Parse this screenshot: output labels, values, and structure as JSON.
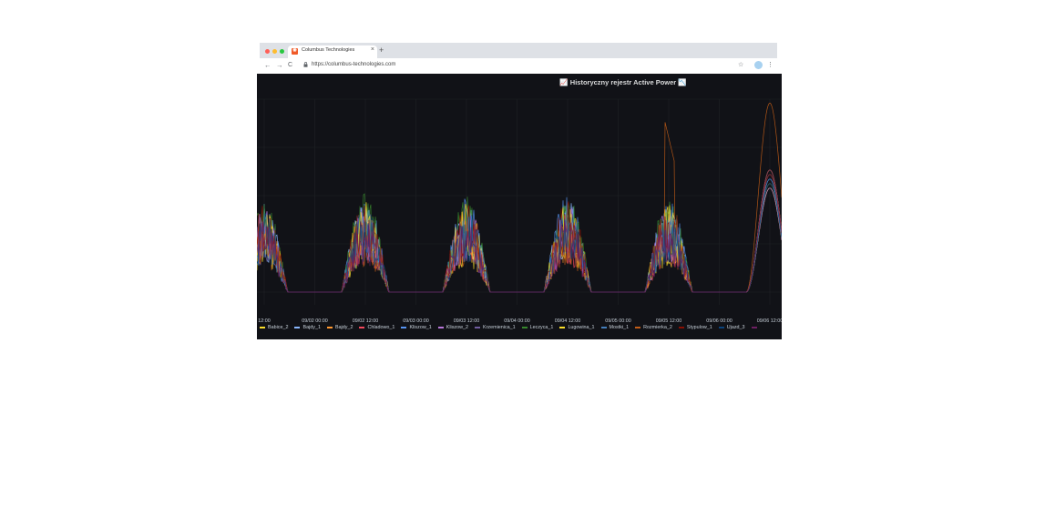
{
  "browser": {
    "tab_title": "Columbus Technologies",
    "tab_close": "×",
    "new_tab": "+",
    "url": "https://columbus-technologies.com",
    "icons": {
      "back": "←",
      "forward": "→",
      "reload": "C",
      "lock": "🔒",
      "star": "☆",
      "menu": "⋮"
    },
    "traffic_lights": [
      "#ff5f57",
      "#febc2e",
      "#28c840"
    ]
  },
  "panel": {
    "title": "📈 Historyczny rejestr Active Power 📉",
    "background": "#111217"
  },
  "chart_data": {
    "type": "line",
    "x_tick_labels": [
      "12:00",
      "09/02 00:00",
      "09/02 12:00",
      "09/03 00:00",
      "09/03 12:00",
      "09/04 00:00",
      "09/04 12:00",
      "09/05 00:00",
      "09/05 12:00",
      "09/06 00:00",
      "09/06 12:00"
    ],
    "grid": true,
    "legend_placement": "bottom",
    "day_peaks": [
      {
        "day": "09/01",
        "relative_peak": 0.5
      },
      {
        "day": "09/02",
        "relative_peak": 0.53
      },
      {
        "day": "09/03",
        "relative_peak": 0.53
      },
      {
        "day": "09/04",
        "relative_peak": 0.53
      },
      {
        "day": "09/05",
        "relative_peak": 0.51
      },
      {
        "day": "09/06",
        "relative_peak": 0.98
      }
    ],
    "series": [
      {
        "name": "Babice_2",
        "color": "#fade2a"
      },
      {
        "name": "Bajdy_1",
        "color": "#8ab8ff"
      },
      {
        "name": "Bajdy_2",
        "color": "#ff9830"
      },
      {
        "name": "Chladowo_1",
        "color": "#f2495c"
      },
      {
        "name": "Kliszow_1",
        "color": "#5794f2"
      },
      {
        "name": "Kliszow_2",
        "color": "#b877d9"
      },
      {
        "name": "Krzemienica_1",
        "color": "#705da0"
      },
      {
        "name": "Leczyca_1",
        "color": "#37872d"
      },
      {
        "name": "Lugowina_1",
        "color": "#fade2a"
      },
      {
        "name": "Mostki_1",
        "color": "#447ebc"
      },
      {
        "name": "Rozmierka_2",
        "color": "#c15c17"
      },
      {
        "name": "Stypulow_1",
        "color": "#890f02"
      },
      {
        "name": "Ujazd_3",
        "color": "#0a437c"
      },
      {
        "name": "",
        "color": "#6d1f62"
      }
    ]
  }
}
